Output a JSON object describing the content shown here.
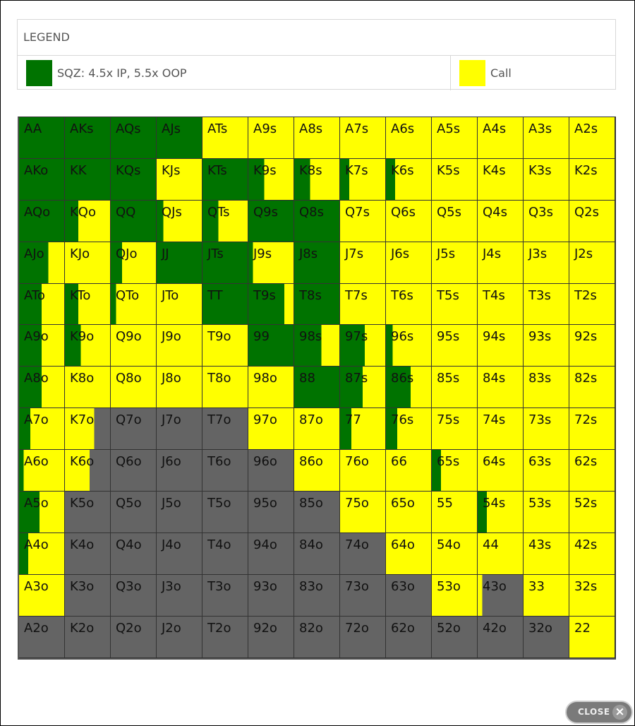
{
  "colors": {
    "sqz": "#007300",
    "call": "#ffff00",
    "fold": "#646464"
  },
  "legend": {
    "title": "LEGEND",
    "items": [
      {
        "label": "SQZ: 4.5x IP, 5.5x OOP",
        "color": "#007300"
      },
      {
        "label": "Call",
        "color": "#ffff00"
      }
    ]
  },
  "close_button": {
    "label": "CLOSE",
    "icon": "close-x-icon"
  },
  "grid": {
    "rows": [
      {
        "cells": [
          {
            "label": "AA",
            "sqz": 1,
            "call": 0
          },
          {
            "label": "AKs",
            "sqz": 1,
            "call": 0
          },
          {
            "label": "AQs",
            "sqz": 1,
            "call": 0
          },
          {
            "label": "AJs",
            "sqz": 1,
            "call": 0
          },
          {
            "label": "ATs",
            "sqz": 0,
            "call": 1
          },
          {
            "label": "A9s",
            "sqz": 0,
            "call": 1
          },
          {
            "label": "A8s",
            "sqz": 0,
            "call": 1
          },
          {
            "label": "A7s",
            "sqz": 0,
            "call": 1
          },
          {
            "label": "A6s",
            "sqz": 0,
            "call": 1
          },
          {
            "label": "A5s",
            "sqz": 0,
            "call": 1
          },
          {
            "label": "A4s",
            "sqz": 0,
            "call": 1
          },
          {
            "label": "A3s",
            "sqz": 0,
            "call": 1
          },
          {
            "label": "A2s",
            "sqz": 0,
            "call": 1
          }
        ]
      },
      {
        "cells": [
          {
            "label": "AKo",
            "sqz": 1,
            "call": 0
          },
          {
            "label": "KK",
            "sqz": 1,
            "call": 0
          },
          {
            "label": "KQs",
            "sqz": 1,
            "call": 0
          },
          {
            "label": "KJs",
            "sqz": 0,
            "call": 1
          },
          {
            "label": "KTs",
            "sqz": 1,
            "call": 0
          },
          {
            "label": "K9s",
            "sqz": 0.35,
            "call": 0.65
          },
          {
            "label": "K8s",
            "sqz": 0.35,
            "call": 0.65
          },
          {
            "label": "K7s",
            "sqz": 0.2,
            "call": 0.8
          },
          {
            "label": "K6s",
            "sqz": 0.2,
            "call": 0.8
          },
          {
            "label": "K5s",
            "sqz": 0,
            "call": 1
          },
          {
            "label": "K4s",
            "sqz": 0,
            "call": 1
          },
          {
            "label": "K3s",
            "sqz": 0,
            "call": 1
          },
          {
            "label": "K2s",
            "sqz": 0,
            "call": 1
          }
        ]
      },
      {
        "cells": [
          {
            "label": "AQo",
            "sqz": 1,
            "call": 0
          },
          {
            "label": "KQo",
            "sqz": 0.3,
            "call": 0.7
          },
          {
            "label": "QQ",
            "sqz": 1,
            "call": 0
          },
          {
            "label": "QJs",
            "sqz": 0.15,
            "call": 0.85
          },
          {
            "label": "QTs",
            "sqz": 0.35,
            "call": 0.65
          },
          {
            "label": "Q9s",
            "sqz": 1,
            "call": 0
          },
          {
            "label": "Q8s",
            "sqz": 1,
            "call": 0
          },
          {
            "label": "Q7s",
            "sqz": 0,
            "call": 1
          },
          {
            "label": "Q6s",
            "sqz": 0,
            "call": 1
          },
          {
            "label": "Q5s",
            "sqz": 0,
            "call": 1
          },
          {
            "label": "Q4s",
            "sqz": 0,
            "call": 1
          },
          {
            "label": "Q3s",
            "sqz": 0,
            "call": 1
          },
          {
            "label": "Q2s",
            "sqz": 0,
            "call": 1
          }
        ]
      },
      {
        "cells": [
          {
            "label": "AJo",
            "sqz": 0.65,
            "call": 0.35
          },
          {
            "label": "KJo",
            "sqz": 0,
            "call": 1
          },
          {
            "label": "QJo",
            "sqz": 0.25,
            "call": 0.75
          },
          {
            "label": "JJ",
            "sqz": 1,
            "call": 0
          },
          {
            "label": "JTs",
            "sqz": 1,
            "call": 0
          },
          {
            "label": "J9s",
            "sqz": 0.1,
            "call": 0.9
          },
          {
            "label": "J8s",
            "sqz": 1,
            "call": 0
          },
          {
            "label": "J7s",
            "sqz": 0,
            "call": 1
          },
          {
            "label": "J6s",
            "sqz": 0,
            "call": 1
          },
          {
            "label": "J5s",
            "sqz": 0,
            "call": 1
          },
          {
            "label": "J4s",
            "sqz": 0,
            "call": 1
          },
          {
            "label": "J3s",
            "sqz": 0,
            "call": 1
          },
          {
            "label": "J2s",
            "sqz": 0,
            "call": 1
          }
        ]
      },
      {
        "cells": [
          {
            "label": "ATo",
            "sqz": 0.5,
            "call": 0.5
          },
          {
            "label": "KTo",
            "sqz": 0.3,
            "call": 0.7
          },
          {
            "label": "QTo",
            "sqz": 0.12,
            "call": 0.88
          },
          {
            "label": "JTo",
            "sqz": 0,
            "call": 1
          },
          {
            "label": "TT",
            "sqz": 1,
            "call": 0
          },
          {
            "label": "T9s",
            "sqz": 0.8,
            "call": 0.2
          },
          {
            "label": "T8s",
            "sqz": 1,
            "call": 0
          },
          {
            "label": "T7s",
            "sqz": 0,
            "call": 1
          },
          {
            "label": "T6s",
            "sqz": 0,
            "call": 1
          },
          {
            "label": "T5s",
            "sqz": 0,
            "call": 1
          },
          {
            "label": "T4s",
            "sqz": 0,
            "call": 1
          },
          {
            "label": "T3s",
            "sqz": 0,
            "call": 1
          },
          {
            "label": "T2s",
            "sqz": 0,
            "call": 1
          }
        ]
      },
      {
        "cells": [
          {
            "label": "A9o",
            "sqz": 0.5,
            "call": 0.5
          },
          {
            "label": "K9o",
            "sqz": 0.35,
            "call": 0.65
          },
          {
            "label": "Q9o",
            "sqz": 0,
            "call": 1
          },
          {
            "label": "J9o",
            "sqz": 0,
            "call": 1
          },
          {
            "label": "T9o",
            "sqz": 0,
            "call": 1
          },
          {
            "label": "99",
            "sqz": 1,
            "call": 0
          },
          {
            "label": "98s",
            "sqz": 0.6,
            "call": 0.4
          },
          {
            "label": "97s",
            "sqz": 0.55,
            "call": 0.45
          },
          {
            "label": "96s",
            "sqz": 0.15,
            "call": 0.85
          },
          {
            "label": "95s",
            "sqz": 0,
            "call": 1
          },
          {
            "label": "94s",
            "sqz": 0,
            "call": 1
          },
          {
            "label": "93s",
            "sqz": 0,
            "call": 1
          },
          {
            "label": "92s",
            "sqz": 0,
            "call": 1
          }
        ]
      },
      {
        "cells": [
          {
            "label": "A8o",
            "sqz": 0.5,
            "call": 0.5
          },
          {
            "label": "K8o",
            "sqz": 0,
            "call": 1
          },
          {
            "label": "Q8o",
            "sqz": 0,
            "call": 1
          },
          {
            "label": "J8o",
            "sqz": 0,
            "call": 1
          },
          {
            "label": "T8o",
            "sqz": 0,
            "call": 1
          },
          {
            "label": "98o",
            "sqz": 0,
            "call": 1
          },
          {
            "label": "88",
            "sqz": 1,
            "call": 0
          },
          {
            "label": "87s",
            "sqz": 0.5,
            "call": 0.5
          },
          {
            "label": "86s",
            "sqz": 0.55,
            "call": 0.45
          },
          {
            "label": "85s",
            "sqz": 0,
            "call": 1
          },
          {
            "label": "84s",
            "sqz": 0,
            "call": 1
          },
          {
            "label": "83s",
            "sqz": 0,
            "call": 1
          },
          {
            "label": "82s",
            "sqz": 0,
            "call": 1
          }
        ]
      },
      {
        "cells": [
          {
            "label": "A7o",
            "sqz": 0.25,
            "call": 0.75
          },
          {
            "label": "K7o",
            "sqz": 0,
            "call": 0.65
          },
          {
            "label": "Q7o",
            "sqz": 0,
            "call": 0
          },
          {
            "label": "J7o",
            "sqz": 0,
            "call": 0
          },
          {
            "label": "T7o",
            "sqz": 0,
            "call": 0
          },
          {
            "label": "97o",
            "sqz": 0,
            "call": 1
          },
          {
            "label": "87o",
            "sqz": 0,
            "call": 1
          },
          {
            "label": "77",
            "sqz": 0.25,
            "call": 0.75
          },
          {
            "label": "76s",
            "sqz": 0.25,
            "call": 0.75
          },
          {
            "label": "75s",
            "sqz": 0,
            "call": 1
          },
          {
            "label": "74s",
            "sqz": 0,
            "call": 1
          },
          {
            "label": "73s",
            "sqz": 0,
            "call": 1
          },
          {
            "label": "72s",
            "sqz": 0,
            "call": 1
          }
        ]
      },
      {
        "cells": [
          {
            "label": "A6o",
            "sqz": 0.1,
            "call": 0.9
          },
          {
            "label": "K6o",
            "sqz": 0,
            "call": 0.55
          },
          {
            "label": "Q6o",
            "sqz": 0,
            "call": 0
          },
          {
            "label": "J6o",
            "sqz": 0,
            "call": 0
          },
          {
            "label": "T6o",
            "sqz": 0,
            "call": 0
          },
          {
            "label": "96o",
            "sqz": 0,
            "call": 0
          },
          {
            "label": "86o",
            "sqz": 0,
            "call": 1
          },
          {
            "label": "76o",
            "sqz": 0,
            "call": 1
          },
          {
            "label": "66",
            "sqz": 0,
            "call": 1
          },
          {
            "label": "65s",
            "sqz": 0.2,
            "call": 0.8
          },
          {
            "label": "64s",
            "sqz": 0,
            "call": 1
          },
          {
            "label": "63s",
            "sqz": 0,
            "call": 1
          },
          {
            "label": "62s",
            "sqz": 0,
            "call": 1
          }
        ]
      },
      {
        "cells": [
          {
            "label": "A5o",
            "sqz": 0.45,
            "call": 0.55
          },
          {
            "label": "K5o",
            "sqz": 0,
            "call": 0
          },
          {
            "label": "Q5o",
            "sqz": 0,
            "call": 0
          },
          {
            "label": "J5o",
            "sqz": 0,
            "call": 0
          },
          {
            "label": "T5o",
            "sqz": 0,
            "call": 0
          },
          {
            "label": "95o",
            "sqz": 0,
            "call": 0
          },
          {
            "label": "85o",
            "sqz": 0,
            "call": 0
          },
          {
            "label": "75o",
            "sqz": 0,
            "call": 1
          },
          {
            "label": "65o",
            "sqz": 0,
            "call": 1
          },
          {
            "label": "55",
            "sqz": 0,
            "call": 1
          },
          {
            "label": "54s",
            "sqz": 0.2,
            "call": 0.8
          },
          {
            "label": "53s",
            "sqz": 0,
            "call": 1
          },
          {
            "label": "52s",
            "sqz": 0,
            "call": 1
          }
        ]
      },
      {
        "cells": [
          {
            "label": "A4o",
            "sqz": 0.2,
            "call": 0.8
          },
          {
            "label": "K4o",
            "sqz": 0,
            "call": 0
          },
          {
            "label": "Q4o",
            "sqz": 0,
            "call": 0
          },
          {
            "label": "J4o",
            "sqz": 0,
            "call": 0
          },
          {
            "label": "T4o",
            "sqz": 0,
            "call": 0
          },
          {
            "label": "94o",
            "sqz": 0,
            "call": 0
          },
          {
            "label": "84o",
            "sqz": 0,
            "call": 0
          },
          {
            "label": "74o",
            "sqz": 0,
            "call": 0
          },
          {
            "label": "64o",
            "sqz": 0,
            "call": 1
          },
          {
            "label": "54o",
            "sqz": 0,
            "call": 1
          },
          {
            "label": "44",
            "sqz": 0,
            "call": 1
          },
          {
            "label": "43s",
            "sqz": 0,
            "call": 1
          },
          {
            "label": "42s",
            "sqz": 0,
            "call": 1
          }
        ]
      },
      {
        "cells": [
          {
            "label": "A3o",
            "sqz": 0,
            "call": 1
          },
          {
            "label": "K3o",
            "sqz": 0,
            "call": 0
          },
          {
            "label": "Q3o",
            "sqz": 0,
            "call": 0
          },
          {
            "label": "J3o",
            "sqz": 0,
            "call": 0
          },
          {
            "label": "T3o",
            "sqz": 0,
            "call": 0
          },
          {
            "label": "93o",
            "sqz": 0,
            "call": 0
          },
          {
            "label": "83o",
            "sqz": 0,
            "call": 0
          },
          {
            "label": "73o",
            "sqz": 0,
            "call": 0
          },
          {
            "label": "63o",
            "sqz": 0,
            "call": 0
          },
          {
            "label": "53o",
            "sqz": 0,
            "call": 1
          },
          {
            "label": "43o",
            "sqz": 0,
            "call": 0.1
          },
          {
            "label": "33",
            "sqz": 0,
            "call": 1
          },
          {
            "label": "32s",
            "sqz": 0,
            "call": 1
          }
        ]
      },
      {
        "cells": [
          {
            "label": "A2o",
            "sqz": 0,
            "call": 0
          },
          {
            "label": "K2o",
            "sqz": 0,
            "call": 0
          },
          {
            "label": "Q2o",
            "sqz": 0,
            "call": 0
          },
          {
            "label": "J2o",
            "sqz": 0,
            "call": 0
          },
          {
            "label": "T2o",
            "sqz": 0,
            "call": 0
          },
          {
            "label": "92o",
            "sqz": 0,
            "call": 0
          },
          {
            "label": "82o",
            "sqz": 0,
            "call": 0
          },
          {
            "label": "72o",
            "sqz": 0,
            "call": 0
          },
          {
            "label": "62o",
            "sqz": 0,
            "call": 0
          },
          {
            "label": "52o",
            "sqz": 0,
            "call": 0
          },
          {
            "label": "42o",
            "sqz": 0,
            "call": 0
          },
          {
            "label": "32o",
            "sqz": 0,
            "call": 0
          },
          {
            "label": "22",
            "sqz": 0,
            "call": 1
          }
        ]
      }
    ]
  }
}
